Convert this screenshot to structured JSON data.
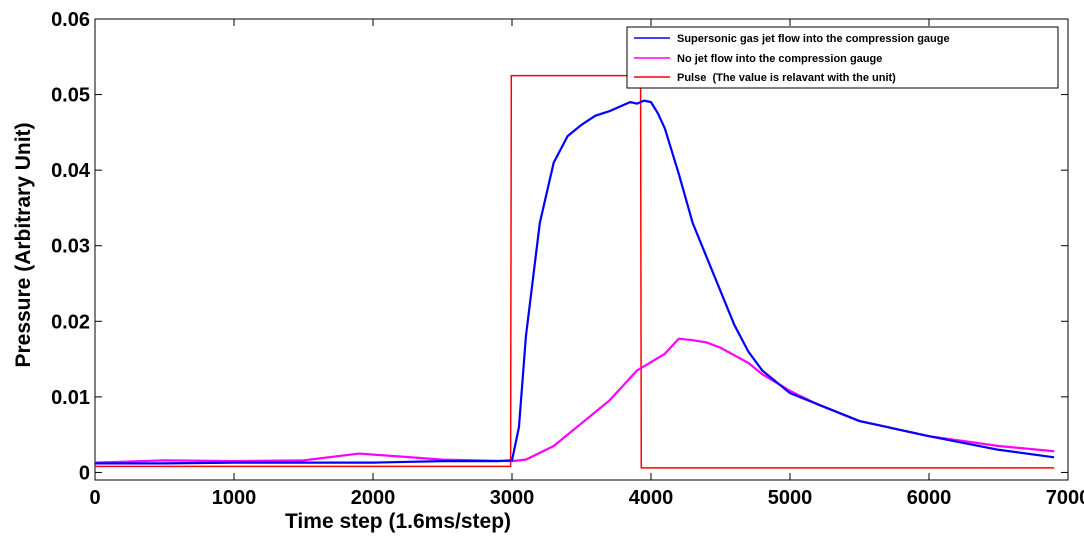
{
  "chart_data": {
    "type": "line",
    "title": "",
    "xlabel": "Time step (1.6ms/step)",
    "ylabel": "Pressure (Arbitrary Unit)",
    "xlim": [
      0,
      7000
    ],
    "ylim": [
      -0.001,
      0.06
    ],
    "x_ticks": [
      0,
      1000,
      2000,
      3000,
      4000,
      5000,
      6000,
      7000
    ],
    "x_tick_labels": [
      "0",
      "1000",
      "2000",
      "3000",
      "4000",
      "5000",
      "6000",
      "7000"
    ],
    "y_ticks": [
      0,
      0.01,
      0.02,
      0.03,
      0.04,
      0.05,
      0.06
    ],
    "y_tick_labels": [
      "0",
      "0.01",
      "0.02",
      "0.03",
      "0.04",
      "0.05",
      "0.06"
    ],
    "grid": false,
    "legend_position": "top-right",
    "series": [
      {
        "name": "Supersonic gas jet flow into the compression gauge",
        "color": "#0000ff",
        "x": [
          0,
          500,
          1000,
          1500,
          2000,
          2500,
          2900,
          3000,
          3050,
          3100,
          3200,
          3300,
          3400,
          3500,
          3600,
          3700,
          3800,
          3850,
          3900,
          3950,
          4000,
          4050,
          4100,
          4200,
          4300,
          4400,
          4500,
          4600,
          4700,
          4800,
          5000,
          5500,
          6000,
          6500,
          6900
        ],
        "y": [
          0.0012,
          0.0012,
          0.0013,
          0.0013,
          0.0013,
          0.0015,
          0.0015,
          0.0016,
          0.006,
          0.018,
          0.033,
          0.041,
          0.0445,
          0.046,
          0.0472,
          0.0478,
          0.0486,
          0.049,
          0.0488,
          0.0492,
          0.049,
          0.0475,
          0.0455,
          0.0395,
          0.033,
          0.0285,
          0.024,
          0.0195,
          0.016,
          0.0135,
          0.0105,
          0.0068,
          0.0048,
          0.003,
          0.002
        ]
      },
      {
        "name": "No jet flow into the compression gauge",
        "color": "#ff00ff",
        "x": [
          0,
          500,
          1000,
          1500,
          1900,
          2500,
          3000,
          3100,
          3300,
          3500,
          3700,
          3900,
          4100,
          4200,
          4300,
          4400,
          4500,
          4600,
          4700,
          4800,
          5000,
          5200,
          5500,
          6000,
          6500,
          6900
        ],
        "y": [
          0.0013,
          0.0016,
          0.0015,
          0.0016,
          0.0025,
          0.0017,
          0.0015,
          0.0017,
          0.0035,
          0.0065,
          0.0095,
          0.0135,
          0.0157,
          0.0177,
          0.0175,
          0.0172,
          0.0165,
          0.0155,
          0.0145,
          0.013,
          0.0108,
          0.009,
          0.0068,
          0.0048,
          0.0035,
          0.0028
        ]
      },
      {
        "name": "Pulse  (The value is relavant with the unit)",
        "color": "#ff0000",
        "x": [
          0,
          2990,
          2995,
          3000,
          3920,
          3925,
          3930,
          6900
        ],
        "y": [
          0.0008,
          0.0008,
          0.0525,
          0.0525,
          0.0525,
          0.0525,
          0.0006,
          0.0006
        ]
      }
    ]
  }
}
